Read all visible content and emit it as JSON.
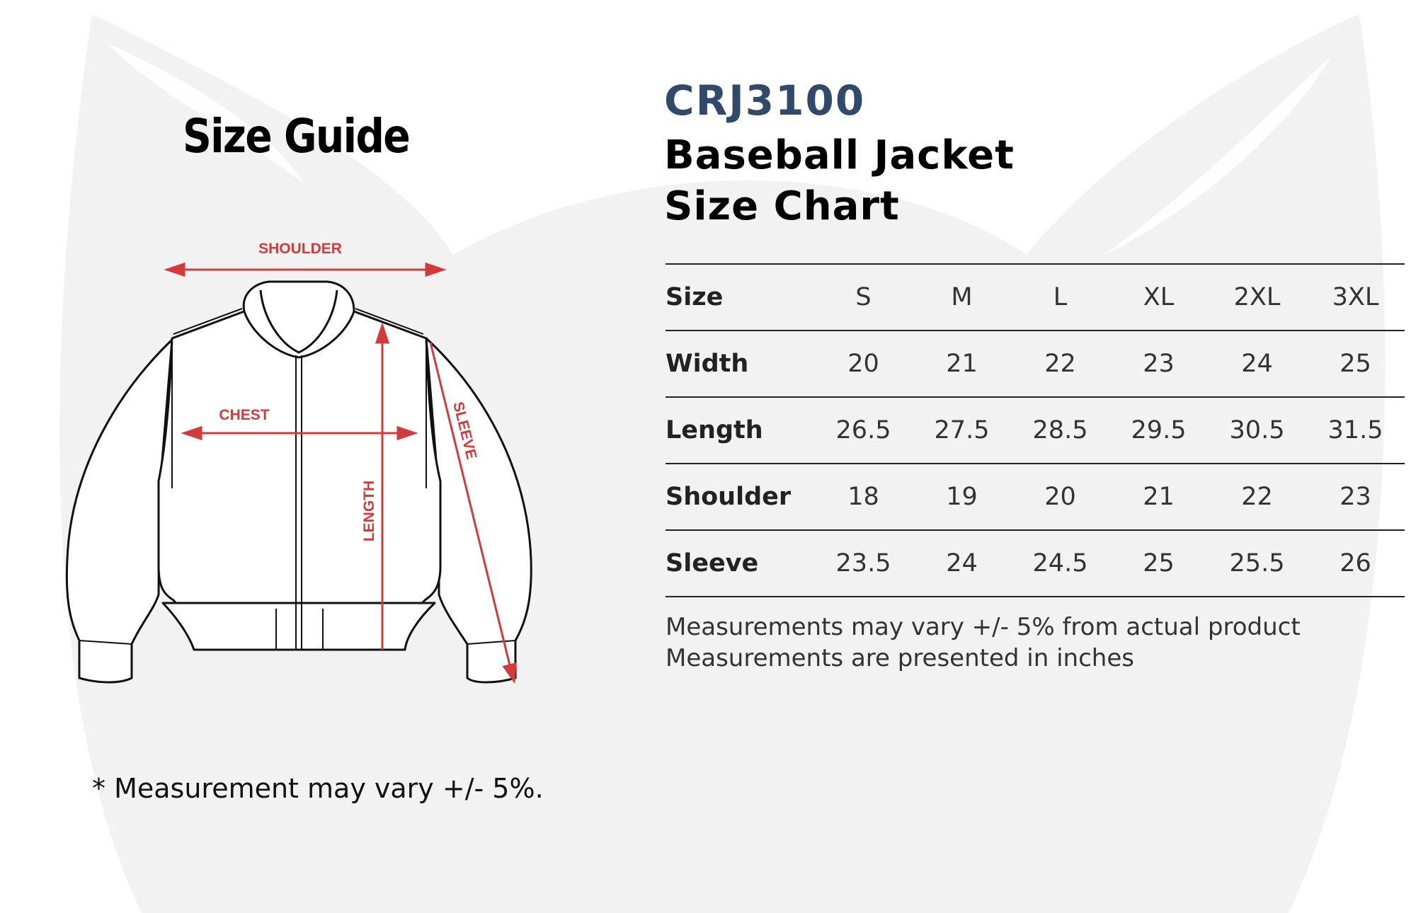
{
  "left_panel": {
    "title": "Size Guide",
    "diagram_labels": {
      "shoulder": "SHOULDER",
      "chest": "CHEST",
      "length": "LENGTH",
      "sleeve": "SLEEVE"
    },
    "footnote": "* Measurement may vary +/- 5%."
  },
  "right_panel": {
    "product_code": "CRJ3100",
    "title_line1": "Baseball Jacket",
    "title_line2": "Size Chart",
    "table": {
      "header": {
        "label": "Size",
        "values": [
          "S",
          "M",
          "L",
          "XL",
          "2XL",
          "3XL"
        ]
      },
      "rows": [
        {
          "label": "Width",
          "values": [
            "20",
            "21",
            "22",
            "23",
            "24",
            "25"
          ]
        },
        {
          "label": "Length",
          "values": [
            "26.5",
            "27.5",
            "28.5",
            "29.5",
            "30.5",
            "31.5"
          ]
        },
        {
          "label": "Shoulder",
          "values": [
            "18",
            "19",
            "20",
            "21",
            "22",
            "23"
          ]
        },
        {
          "label": "Sleeve",
          "values": [
            "23.5",
            "24",
            "24.5",
            "25",
            "25.5",
            "26"
          ]
        }
      ]
    },
    "notes": [
      "Measurements may vary +/- 5% from actual product",
      "Measurements are presented in inches"
    ]
  },
  "colors": {
    "accent_red": "#d43a3a",
    "code_blue": "#2f4a6b",
    "watermark": "#f2f2f2"
  }
}
